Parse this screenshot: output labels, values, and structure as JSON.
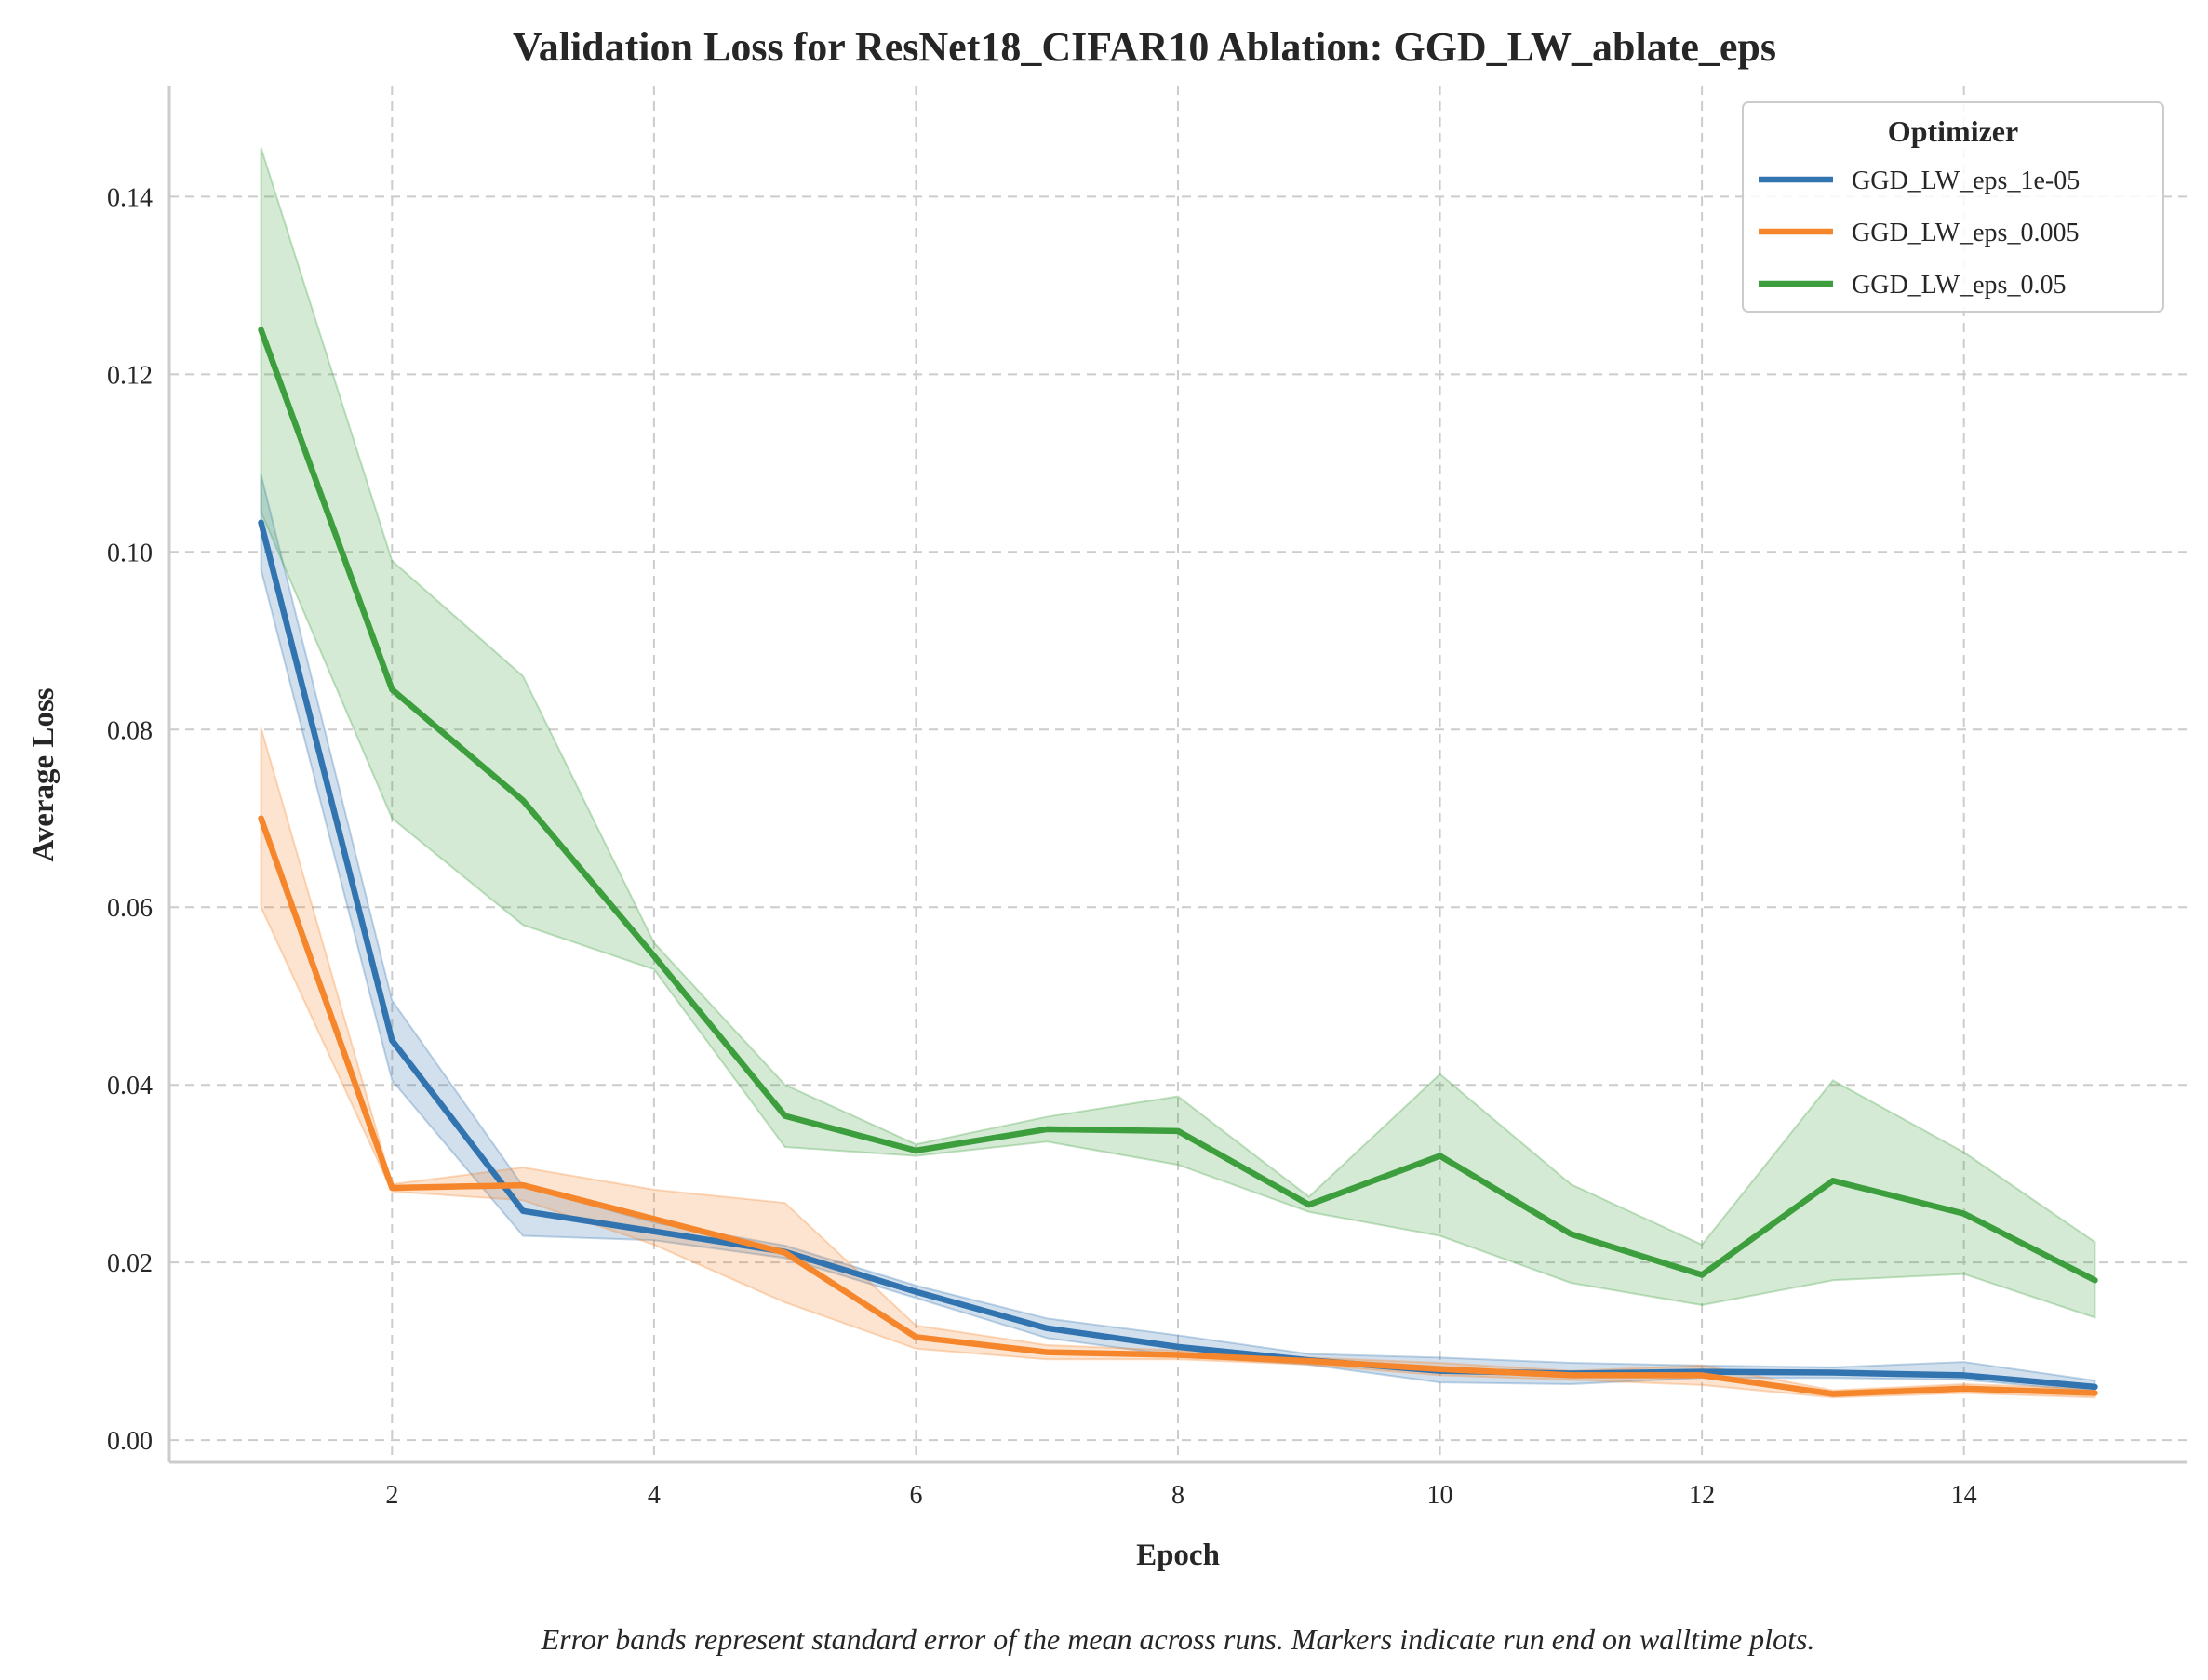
{
  "chart_data": {
    "type": "line",
    "title": "Validation Loss for ResNet18_CIFAR10 Ablation: GGD_LW_ablate_eps",
    "xlabel": "Epoch",
    "ylabel": "Average Loss",
    "caption": "Error bands represent standard error of the mean across runs. Markers indicate run end on walltime plots.",
    "xlim": [
      0.3,
      15.7
    ],
    "ylim": [
      -0.0025,
      0.1525
    ],
    "xticks": [
      2,
      4,
      6,
      8,
      10,
      12,
      14
    ],
    "yticks": [
      0.0,
      0.02,
      0.04,
      0.06,
      0.08,
      0.1,
      0.12,
      0.14
    ],
    "ytick_labels": [
      "0.00",
      "0.02",
      "0.04",
      "0.06",
      "0.08",
      "0.10",
      "0.12",
      "0.14"
    ],
    "grid": true,
    "legend": {
      "title": "Optimizer",
      "position": "top-right"
    },
    "x": [
      1,
      2,
      3,
      4,
      5,
      6,
      7,
      8,
      9,
      10,
      11,
      12,
      13,
      14,
      15
    ],
    "series": [
      {
        "name": "GGD_LW_eps_1e-05",
        "color": "#3274b0",
        "values": [
          0.1033,
          0.045,
          0.0258,
          0.0235,
          0.0212,
          0.0167,
          0.0126,
          0.0105,
          0.009,
          0.0078,
          0.0075,
          0.0077,
          0.0076,
          0.0073,
          0.006
        ],
        "lower": [
          0.098,
          0.0405,
          0.023,
          0.0225,
          0.0205,
          0.016,
          0.0115,
          0.0095,
          0.0085,
          0.0065,
          0.0063,
          0.007,
          0.007,
          0.0068,
          0.0055
        ],
        "upper": [
          0.1087,
          0.0495,
          0.0286,
          0.0245,
          0.0219,
          0.0174,
          0.0137,
          0.0118,
          0.0097,
          0.0093,
          0.0087,
          0.0084,
          0.0082,
          0.0088,
          0.0067
        ]
      },
      {
        "name": "GGD_LW_eps_0.005",
        "color": "#f5862b",
        "values": [
          0.07,
          0.0284,
          0.0287,
          0.0249,
          0.0211,
          0.0116,
          0.0099,
          0.0096,
          0.0089,
          0.008,
          0.0073,
          0.0073,
          0.0052,
          0.0058,
          0.0053
        ],
        "lower": [
          0.06,
          0.028,
          0.027,
          0.022,
          0.0155,
          0.0103,
          0.0091,
          0.0091,
          0.0085,
          0.0073,
          0.0068,
          0.0062,
          0.0048,
          0.0053,
          0.0048
        ],
        "upper": [
          0.0802,
          0.0288,
          0.0307,
          0.0282,
          0.0267,
          0.0129,
          0.0107,
          0.0101,
          0.0093,
          0.0087,
          0.0078,
          0.0084,
          0.0056,
          0.0063,
          0.0058
        ]
      },
      {
        "name": "GGD_LW_eps_0.05",
        "color": "#3d9e3d",
        "values": [
          0.125,
          0.0845,
          0.072,
          0.0545,
          0.0365,
          0.0326,
          0.035,
          0.0348,
          0.0265,
          0.032,
          0.0232,
          0.0186,
          0.0292,
          0.0255,
          0.018
        ],
        "lower": [
          0.1045,
          0.07,
          0.058,
          0.053,
          0.033,
          0.032,
          0.0336,
          0.031,
          0.0257,
          0.023,
          0.0177,
          0.0152,
          0.018,
          0.0187,
          0.0138
        ],
        "upper": [
          0.1455,
          0.099,
          0.086,
          0.056,
          0.04,
          0.0333,
          0.0364,
          0.0387,
          0.0274,
          0.0412,
          0.0288,
          0.022,
          0.0405,
          0.0324,
          0.0223
        ]
      }
    ]
  }
}
